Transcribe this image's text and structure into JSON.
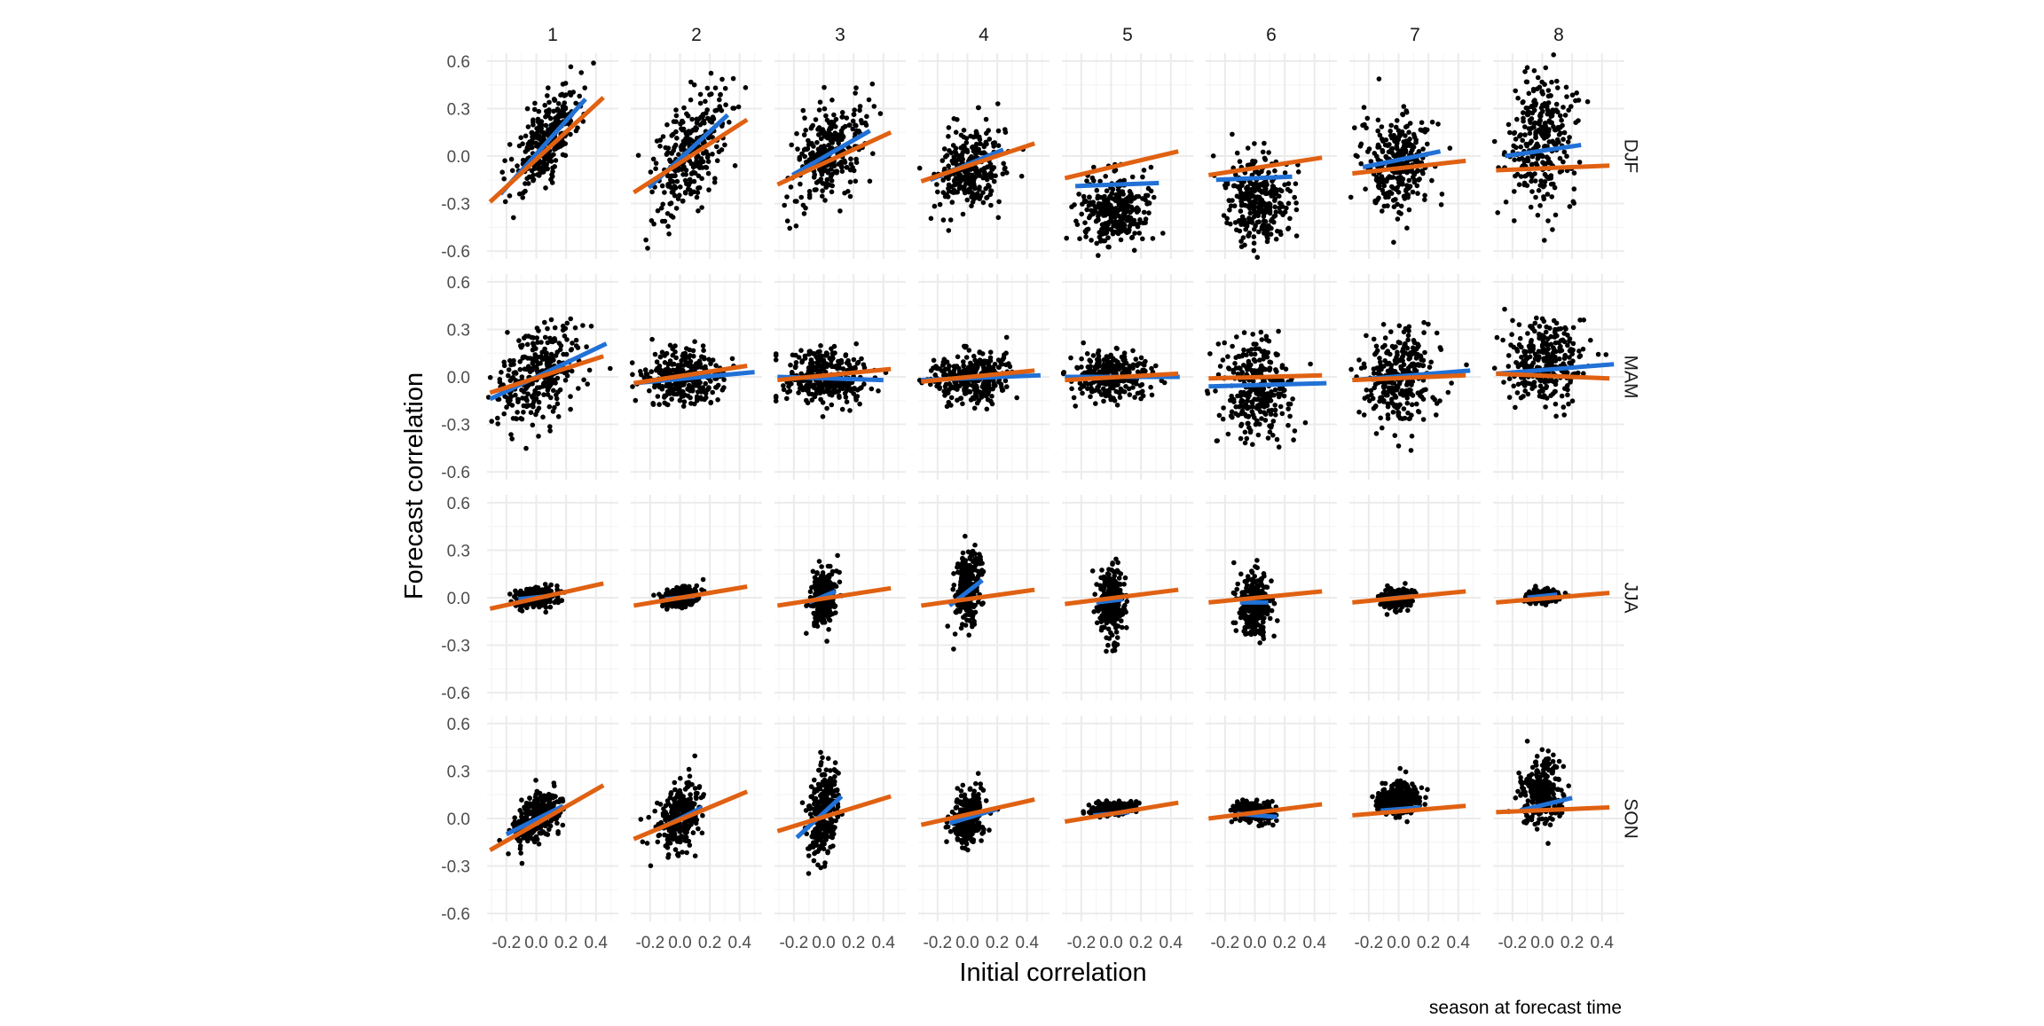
{
  "chart_data": {
    "type": "scatter",
    "facet_columns": [
      "1",
      "2",
      "3",
      "4",
      "5",
      "6",
      "7",
      "8"
    ],
    "facet_rows": [
      "DJF",
      "MAM",
      "JJA",
      "SON"
    ],
    "xlabel": "Initial correlation",
    "ylabel": "Forecast correlation",
    "caption": "season at forecast time",
    "x_ticks": [
      -0.2,
      0.0,
      0.2,
      0.4
    ],
    "x_tick_labels": [
      "-0.2",
      "0.0",
      "0.2",
      "0.4"
    ],
    "y_ticks": [
      -0.6,
      -0.3,
      0.0,
      0.3,
      0.6
    ],
    "y_tick_labels": [
      "-0.6",
      "-0.3",
      "0.0",
      "0.3",
      "0.6"
    ],
    "xlim": [
      -0.33,
      0.55
    ],
    "ylim": [
      -0.65,
      0.65
    ],
    "grid": true,
    "colors": {
      "points": "#000000",
      "fit_line_blue": "#2171d6",
      "fit_line_orange": "#e06112",
      "grid_major": "#ebebeb",
      "grid_minor": "#f5f5f5"
    },
    "panels": [
      {
        "row": "DJF",
        "col": "1",
        "spread": {
          "sx": 0.11,
          "sy": 0.12,
          "cx": 0.06,
          "cy": 0.08
        },
        "blue": {
          "x": [
            -0.24,
            0.33
          ],
          "y": [
            -0.24,
            0.36
          ]
        },
        "orange": {
          "x": [
            -0.31,
            0.45
          ],
          "y": [
            -0.29,
            0.37
          ]
        }
      },
      {
        "row": "DJF",
        "col": "2",
        "spread": {
          "sx": 0.13,
          "sy": 0.17,
          "cx": 0.06,
          "cy": 0.03
        },
        "blue": {
          "x": [
            -0.21,
            0.32
          ],
          "y": [
            -0.2,
            0.26
          ]
        },
        "orange": {
          "x": [
            -0.31,
            0.45
          ],
          "y": [
            -0.23,
            0.23
          ]
        }
      },
      {
        "row": "DJF",
        "col": "3",
        "spread": {
          "sx": 0.12,
          "sy": 0.14,
          "cx": 0.03,
          "cy": 0.02
        },
        "blue": {
          "x": [
            -0.21,
            0.31
          ],
          "y": [
            -0.12,
            0.16
          ]
        },
        "orange": {
          "x": [
            -0.31,
            0.45
          ],
          "y": [
            -0.18,
            0.15
          ]
        }
      },
      {
        "row": "DJF",
        "col": "4",
        "spread": {
          "sx": 0.11,
          "sy": 0.13,
          "cx": 0.02,
          "cy": -0.03
        },
        "blue": {
          "x": [
            -0.25,
            0.24
          ],
          "y": [
            -0.15,
            0.04
          ]
        },
        "orange": {
          "x": [
            -0.31,
            0.45
          ],
          "y": [
            -0.16,
            0.08
          ]
        }
      },
      {
        "row": "DJF",
        "col": "5",
        "spread": {
          "sx": 0.12,
          "sy": 0.12,
          "cx": 0.03,
          "cy": -0.17
        },
        "blue": {
          "x": [
            -0.24,
            0.32
          ],
          "y": [
            -0.19,
            -0.17
          ]
        },
        "orange": {
          "x": [
            -0.31,
            0.45
          ],
          "y": [
            -0.14,
            0.03
          ]
        }
      },
      {
        "row": "DJF",
        "col": "6",
        "spread": {
          "sx": 0.11,
          "sy": 0.13,
          "cx": 0.02,
          "cy": -0.14
        },
        "blue": {
          "x": [
            -0.26,
            0.25
          ],
          "y": [
            -0.15,
            -0.13
          ]
        },
        "orange": {
          "x": [
            -0.31,
            0.45
          ],
          "y": [
            -0.12,
            -0.01
          ]
        }
      },
      {
        "row": "DJF",
        "col": "7",
        "spread": {
          "sx": 0.11,
          "sy": 0.16,
          "cx": 0.0,
          "cy": -0.02
        },
        "blue": {
          "x": [
            -0.24,
            0.28
          ],
          "y": [
            -0.07,
            0.03
          ]
        },
        "orange": {
          "x": [
            -0.31,
            0.45
          ],
          "y": [
            -0.11,
            -0.03
          ]
        }
      },
      {
        "row": "DJF",
        "col": "8",
        "spread": {
          "sx": 0.11,
          "sy": 0.2,
          "cx": 0.0,
          "cy": 0.04
        },
        "blue": {
          "x": [
            -0.25,
            0.26
          ],
          "y": [
            0.0,
            0.07
          ]
        },
        "orange": {
          "x": [
            -0.31,
            0.45
          ],
          "y": [
            -0.09,
            -0.06
          ]
        }
      },
      {
        "row": "MAM",
        "col": "1",
        "spread": {
          "sx": 0.14,
          "sy": 0.14,
          "cx": 0.02,
          "cy": 0.02
        },
        "blue": {
          "x": [
            -0.31,
            0.47
          ],
          "y": [
            -0.14,
            0.21
          ]
        },
        "orange": {
          "x": [
            -0.31,
            0.45
          ],
          "y": [
            -0.1,
            0.13
          ]
        }
      },
      {
        "row": "MAM",
        "col": "2",
        "spread": {
          "sx": 0.14,
          "sy": 0.08,
          "cx": 0.03,
          "cy": 0.01
        },
        "blue": {
          "x": [
            -0.31,
            0.5
          ],
          "y": [
            -0.04,
            0.03
          ]
        },
        "orange": {
          "x": [
            -0.31,
            0.45
          ],
          "y": [
            -0.04,
            0.07
          ]
        }
      },
      {
        "row": "MAM",
        "col": "3",
        "spread": {
          "sx": 0.14,
          "sy": 0.09,
          "cx": 0.02,
          "cy": 0.0
        },
        "blue": {
          "x": [
            -0.31,
            0.4
          ],
          "y": [
            0.0,
            -0.02
          ]
        },
        "orange": {
          "x": [
            -0.31,
            0.45
          ],
          "y": [
            -0.02,
            0.05
          ]
        }
      },
      {
        "row": "MAM",
        "col": "4",
        "spread": {
          "sx": 0.14,
          "sy": 0.08,
          "cx": 0.03,
          "cy": 0.0
        },
        "blue": {
          "x": [
            -0.31,
            0.49
          ],
          "y": [
            -0.02,
            0.01
          ]
        },
        "orange": {
          "x": [
            -0.31,
            0.45
          ],
          "y": [
            -0.03,
            0.04
          ]
        }
      },
      {
        "row": "MAM",
        "col": "5",
        "spread": {
          "sx": 0.13,
          "sy": 0.07,
          "cx": 0.01,
          "cy": 0.01
        },
        "blue": {
          "x": [
            -0.31,
            0.46
          ],
          "y": [
            0.0,
            0.0
          ]
        },
        "orange": {
          "x": [
            -0.31,
            0.45
          ],
          "y": [
            -0.02,
            0.02
          ]
        }
      },
      {
        "row": "MAM",
        "col": "6",
        "spread": {
          "sx": 0.12,
          "sy": 0.16,
          "cx": 0.01,
          "cy": -0.03
        },
        "blue": {
          "x": [
            -0.31,
            0.48
          ],
          "y": [
            -0.06,
            -0.04
          ]
        },
        "orange": {
          "x": [
            -0.31,
            0.45
          ],
          "y": [
            -0.01,
            0.01
          ]
        }
      },
      {
        "row": "MAM",
        "col": "7",
        "spread": {
          "sx": 0.12,
          "sy": 0.15,
          "cx": 0.0,
          "cy": 0.0
        },
        "blue": {
          "x": [
            -0.31,
            0.48
          ],
          "y": [
            -0.02,
            0.04
          ]
        },
        "orange": {
          "x": [
            -0.31,
            0.45
          ],
          "y": [
            -0.02,
            0.01
          ]
        }
      },
      {
        "row": "MAM",
        "col": "8",
        "spread": {
          "sx": 0.12,
          "sy": 0.13,
          "cx": 0.02,
          "cy": 0.05
        },
        "blue": {
          "x": [
            -0.31,
            0.48
          ],
          "y": [
            0.02,
            0.08
          ]
        },
        "orange": {
          "x": [
            -0.31,
            0.45
          ],
          "y": [
            0.02,
            -0.01
          ]
        }
      },
      {
        "row": "JJA",
        "col": "1",
        "spread": {
          "sx": 0.06,
          "sy": 0.03,
          "cx": 0.0,
          "cy": 0.0
        },
        "blue": {
          "x": [
            -0.12,
            0.08
          ],
          "y": [
            -0.01,
            0.01
          ]
        },
        "orange": {
          "x": [
            -0.31,
            0.45
          ],
          "y": [
            -0.07,
            0.09
          ]
        }
      },
      {
        "row": "JJA",
        "col": "2",
        "spread": {
          "sx": 0.06,
          "sy": 0.03,
          "cx": 0.0,
          "cy": 0.0
        },
        "blue": {
          "x": [
            -0.1,
            0.1
          ],
          "y": [
            -0.01,
            0.01
          ]
        },
        "orange": {
          "x": [
            -0.31,
            0.45
          ],
          "y": [
            -0.05,
            0.07
          ]
        }
      },
      {
        "row": "JJA",
        "col": "3",
        "spread": {
          "sx": 0.04,
          "sy": 0.08,
          "cx": 0.0,
          "cy": 0.0
        },
        "blue": {
          "x": [
            -0.1,
            0.08
          ],
          "y": [
            -0.03,
            0.04
          ]
        },
        "orange": {
          "x": [
            -0.31,
            0.45
          ],
          "y": [
            -0.05,
            0.06
          ]
        }
      },
      {
        "row": "JJA",
        "col": "4",
        "spread": {
          "sx": 0.04,
          "sy": 0.12,
          "cx": 0.0,
          "cy": 0.02
        },
        "blue": {
          "x": [
            -0.12,
            0.1
          ],
          "y": [
            -0.05,
            0.11
          ]
        },
        "orange": {
          "x": [
            -0.31,
            0.45
          ],
          "y": [
            -0.05,
            0.05
          ]
        }
      },
      {
        "row": "JJA",
        "col": "5",
        "spread": {
          "sx": 0.04,
          "sy": 0.11,
          "cx": 0.0,
          "cy": 0.0
        },
        "blue": {
          "x": [
            -0.1,
            0.08
          ],
          "y": [
            -0.03,
            -0.01
          ]
        },
        "orange": {
          "x": [
            -0.31,
            0.45
          ],
          "y": [
            -0.04,
            0.05
          ]
        }
      },
      {
        "row": "JJA",
        "col": "6",
        "spread": {
          "sx": 0.05,
          "sy": 0.1,
          "cx": 0.0,
          "cy": -0.02
        },
        "blue": {
          "x": [
            -0.1,
            0.09
          ],
          "y": [
            -0.03,
            -0.03
          ]
        },
        "orange": {
          "x": [
            -0.31,
            0.45
          ],
          "y": [
            -0.03,
            0.04
          ]
        }
      },
      {
        "row": "JJA",
        "col": "7",
        "spread": {
          "sx": 0.05,
          "sy": 0.03,
          "cx": 0.0,
          "cy": 0.0
        },
        "blue": {
          "x": [
            -0.1,
            0.1
          ],
          "y": [
            -0.01,
            0.01
          ]
        },
        "orange": {
          "x": [
            -0.31,
            0.45
          ],
          "y": [
            -0.03,
            0.04
          ]
        }
      },
      {
        "row": "JJA",
        "col": "8",
        "spread": {
          "sx": 0.05,
          "sy": 0.02,
          "cx": 0.0,
          "cy": 0.0
        },
        "blue": {
          "x": [
            -0.1,
            0.1
          ],
          "y": [
            0.0,
            0.02
          ]
        },
        "orange": {
          "x": [
            -0.31,
            0.45
          ],
          "y": [
            -0.03,
            0.03
          ]
        }
      },
      {
        "row": "SON",
        "col": "1",
        "spread": {
          "sx": 0.08,
          "sy": 0.07,
          "cx": 0.0,
          "cy": 0.01
        },
        "blue": {
          "x": [
            -0.2,
            0.18
          ],
          "y": [
            -0.1,
            0.08
          ]
        },
        "orange": {
          "x": [
            -0.31,
            0.45
          ],
          "y": [
            -0.2,
            0.21
          ]
        }
      },
      {
        "row": "SON",
        "col": "2",
        "spread": {
          "sx": 0.07,
          "sy": 0.1,
          "cx": 0.0,
          "cy": 0.01
        },
        "blue": {
          "x": [
            -0.15,
            0.15
          ],
          "y": [
            -0.07,
            0.07
          ]
        },
        "orange": {
          "x": [
            -0.31,
            0.45
          ],
          "y": [
            -0.13,
            0.17
          ]
        }
      },
      {
        "row": "SON",
        "col": "3",
        "spread": {
          "sx": 0.05,
          "sy": 0.13,
          "cx": 0.0,
          "cy": 0.01
        },
        "blue": {
          "x": [
            -0.18,
            0.12
          ],
          "y": [
            -0.12,
            0.14
          ]
        },
        "orange": {
          "x": [
            -0.31,
            0.45
          ],
          "y": [
            -0.08,
            0.14
          ]
        }
      },
      {
        "row": "SON",
        "col": "4",
        "spread": {
          "sx": 0.05,
          "sy": 0.08,
          "cx": 0.0,
          "cy": 0.0
        },
        "blue": {
          "x": [
            -0.12,
            0.2
          ],
          "y": [
            -0.03,
            0.06
          ]
        },
        "orange": {
          "x": [
            -0.31,
            0.45
          ],
          "y": [
            -0.04,
            0.12
          ]
        }
      },
      {
        "row": "SON",
        "col": "5",
        "spread": {
          "sx": 0.07,
          "sy": 0.02,
          "cx": 0.0,
          "cy": 0.03
        },
        "blue": {
          "x": [
            -0.12,
            0.12
          ],
          "y": [
            0.02,
            0.04
          ]
        },
        "orange": {
          "x": [
            -0.31,
            0.45
          ],
          "y": [
            -0.02,
            0.1
          ]
        }
      },
      {
        "row": "SON",
        "col": "6",
        "spread": {
          "sx": 0.07,
          "sy": 0.03,
          "cx": 0.0,
          "cy": 0.02
        },
        "blue": {
          "x": [
            -0.12,
            0.15
          ],
          "y": [
            0.03,
            0.01
          ]
        },
        "orange": {
          "x": [
            -0.31,
            0.45
          ],
          "y": [
            0.0,
            0.09
          ]
        }
      },
      {
        "row": "SON",
        "col": "7",
        "spread": {
          "sx": 0.07,
          "sy": 0.05,
          "cx": 0.0,
          "cy": 0.06
        },
        "blue": {
          "x": [
            -0.12,
            0.15
          ],
          "y": [
            0.05,
            0.07
          ]
        },
        "orange": {
          "x": [
            -0.31,
            0.45
          ],
          "y": [
            0.02,
            0.08
          ]
        }
      },
      {
        "row": "SON",
        "col": "8",
        "spread": {
          "sx": 0.07,
          "sy": 0.1,
          "cx": 0.0,
          "cy": 0.08
        },
        "blue": {
          "x": [
            -0.15,
            0.2
          ],
          "y": [
            0.05,
            0.13
          ]
        },
        "orange": {
          "x": [
            -0.31,
            0.45
          ],
          "y": [
            0.04,
            0.07
          ]
        }
      }
    ]
  }
}
